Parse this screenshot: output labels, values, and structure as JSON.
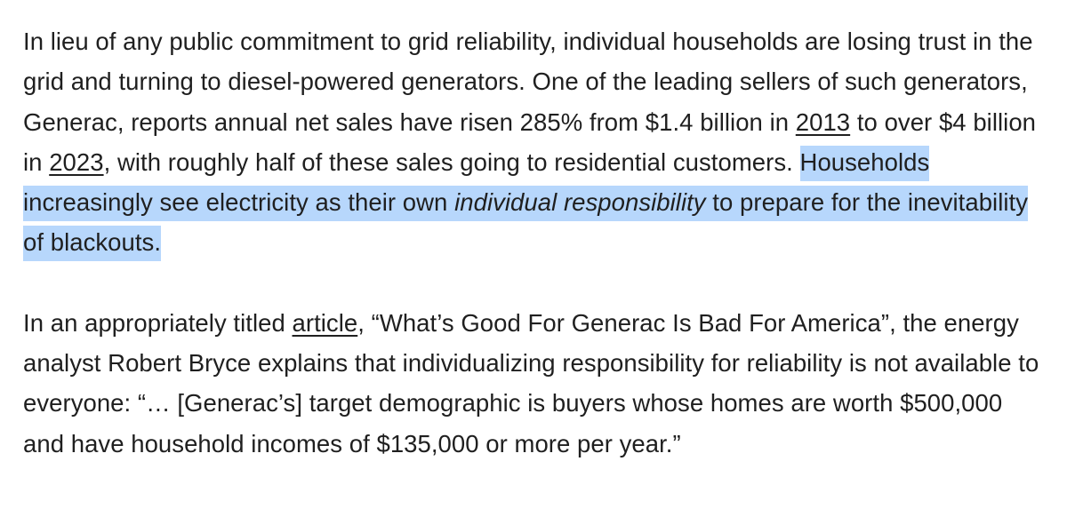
{
  "paragraph1": {
    "text_a": "In lieu of any public commitment to grid reliability, individual households are losing trust in the grid and turning to diesel-powered generators. One of the leading sellers of such generators, Generac, reports annual net sales have risen 285% from $1.4 billion in ",
    "link_2013": "2013",
    "text_b": " to over $4 billion in ",
    "link_2023": "2023",
    "text_c": ", with roughly half of these sales going to residential customers. ",
    "highlight_a": "Households increasingly see electricity as their own ",
    "highlight_em": "individual responsibility",
    "highlight_b": " to prepare for the inevitability of blackouts."
  },
  "paragraph2": {
    "text_a": "In an appropriately titled ",
    "link_article": "article",
    "text_b": ", “What’s Good For Generac Is Bad For America”, the energy analyst Robert Bryce explains that individualizing responsibility for reliability is not available to everyone: “… [Generac’s] target demographic is buyers whose homes are worth $500,000 and have household incomes of $135,000 or more per year.”"
  },
  "colors": {
    "text": "#1f1f1f",
    "highlight": "#b7d7fc",
    "background": "#ffffff"
  }
}
